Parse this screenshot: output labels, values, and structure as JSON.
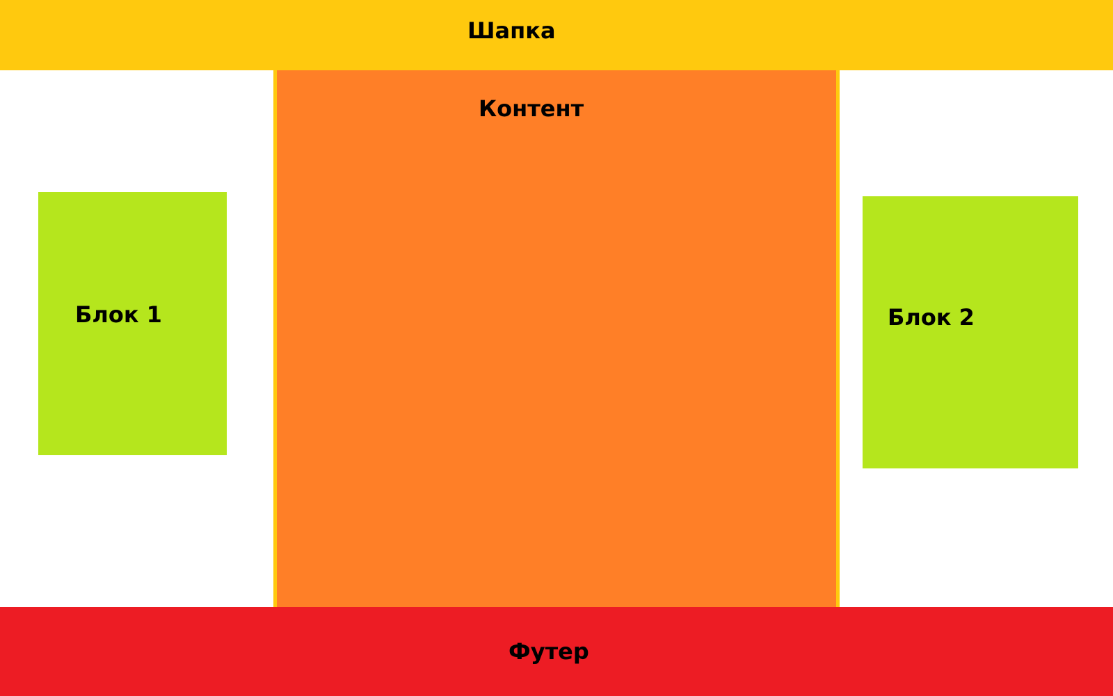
{
  "header": {
    "label": "Шапка",
    "color": "#FFC90E"
  },
  "content": {
    "label": "Контент",
    "color": "#FF7F27",
    "border_color": "#FFC90E"
  },
  "block_1": {
    "label": "Блок 1",
    "color": "#B5E61D"
  },
  "block_2": {
    "label": "Блок 2",
    "color": "#B5E61D"
  },
  "footer": {
    "label": "Футер",
    "color": "#ED1C24"
  }
}
